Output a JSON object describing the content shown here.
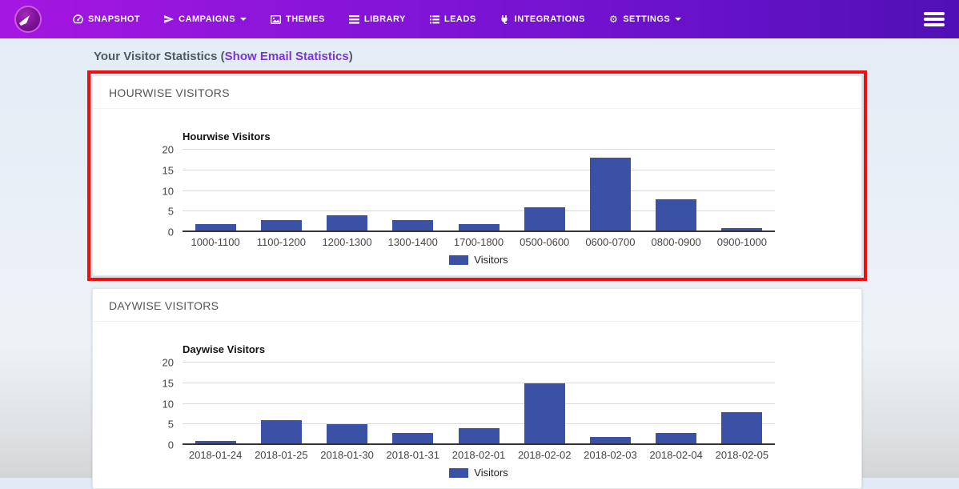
{
  "navbar": {
    "logo_icon": "paper-plane-logo-icon",
    "menu_icon": "hamburger-icon",
    "items": [
      {
        "id": "snapshot",
        "label": "SNAPSHOT",
        "icon": "tachometer-icon",
        "caret": false
      },
      {
        "id": "campaigns",
        "label": "CAMPAIGNS",
        "icon": "paper-plane-icon",
        "caret": true
      },
      {
        "id": "themes",
        "label": "THEMES",
        "icon": "image-icon",
        "caret": false
      },
      {
        "id": "library",
        "label": "LIBRARY",
        "icon": "library-icon",
        "caret": false
      },
      {
        "id": "leads",
        "label": "LEADS",
        "icon": "list-icon",
        "caret": false
      },
      {
        "id": "integrations",
        "label": "INTEGRATIONS",
        "icon": "plug-icon",
        "caret": false
      },
      {
        "id": "settings",
        "label": "SETTINGS",
        "icon": "cogs-icon",
        "caret": true
      }
    ],
    "colors": {
      "gradient_start": "#a517e0",
      "gradient_end": "#5010b5"
    }
  },
  "page": {
    "title_prefix": "Your Visitor Statistics (",
    "title_link": "Show Email Statistics",
    "title_suffix": ")",
    "link_color": "#7a35d6",
    "highlight_border_color": "#ee0f0f"
  },
  "chart_data": [
    {
      "type": "bar",
      "panel_title": "HOURWISE VISITORS",
      "title": "Hourwise Visitors",
      "categories": [
        "1000-1100",
        "1100-1200",
        "1200-1300",
        "1300-1400",
        "1700-1800",
        "0500-0600",
        "0600-0700",
        "0800-0900",
        "0900-1000"
      ],
      "values": [
        2,
        3,
        4,
        3,
        2,
        6,
        18,
        8,
        1
      ],
      "series_name": "Visitors",
      "xlabel": "",
      "ylabel": "",
      "ylim": [
        0,
        20
      ],
      "yticks": [
        0,
        5,
        10,
        15,
        20
      ],
      "bar_color": "#3b51a5",
      "grid": true,
      "legend_position": "bottom",
      "highlighted": true
    },
    {
      "type": "bar",
      "panel_title": "DAYWISE VISITORS",
      "title": "Daywise Visitors",
      "categories": [
        "2018-01-24",
        "2018-01-25",
        "2018-01-30",
        "2018-01-31",
        "2018-02-01",
        "2018-02-02",
        "2018-02-03",
        "2018-02-04",
        "2018-02-05"
      ],
      "values": [
        1,
        6,
        5,
        3,
        4,
        15,
        2,
        3,
        8
      ],
      "series_name": "Visitors",
      "xlabel": "",
      "ylabel": "",
      "ylim": [
        0,
        20
      ],
      "yticks": [
        0,
        5,
        10,
        15,
        20
      ],
      "bar_color": "#3b51a5",
      "grid": true,
      "legend_position": "bottom",
      "highlighted": false
    }
  ]
}
